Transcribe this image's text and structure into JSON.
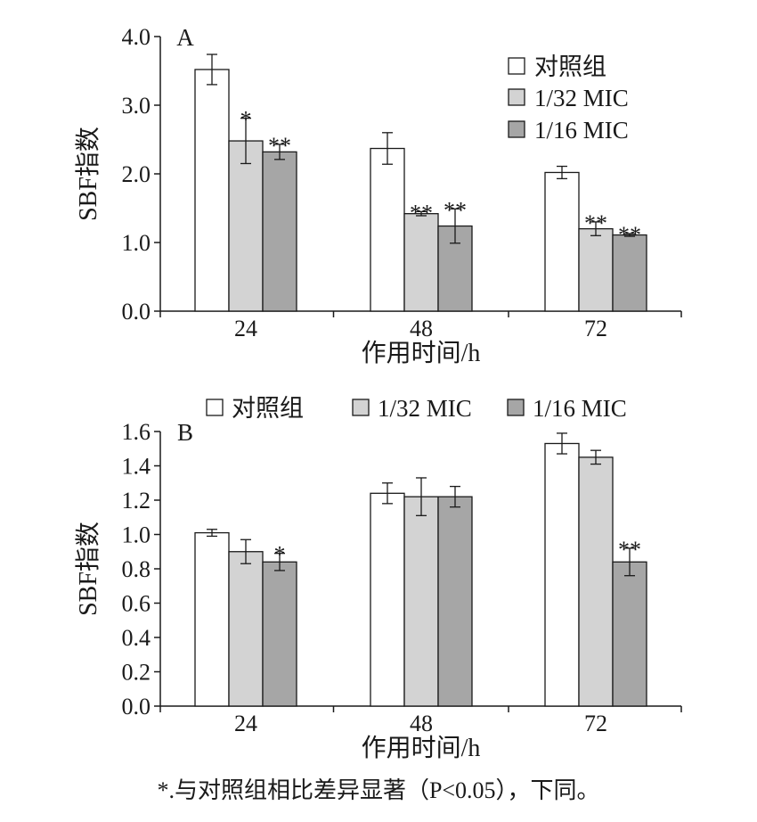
{
  "colors": {
    "control": "#ffffff",
    "mic32": "#d3d3d3",
    "mic16": "#a6a6a6",
    "stroke": "#1a1a1a"
  },
  "legend_items": [
    "对照组",
    "1/32 MIC",
    "1/16 MIC"
  ],
  "footnote": "*.与对照组相比差异显著（P<0.05），下同。",
  "chart_data": [
    {
      "type": "bar",
      "panel_label": "A",
      "categories": [
        "24",
        "48",
        "72"
      ],
      "xlabel": "作用时间/h",
      "ylabel": "SBF指数",
      "ylim": [
        0,
        4.0
      ],
      "yticks": [
        "0.0",
        "1.0",
        "2.0",
        "3.0",
        "4.0"
      ],
      "legend": "top-right",
      "series": [
        {
          "name": "对照组",
          "values": [
            3.52,
            2.37,
            2.02
          ],
          "errors": [
            0.22,
            0.23,
            0.09
          ],
          "sig": [
            "",
            "",
            ""
          ]
        },
        {
          "name": "1/32 MIC",
          "values": [
            2.48,
            1.42,
            1.2
          ],
          "errors": [
            0.33,
            0.03,
            0.1
          ],
          "sig": [
            "*",
            "**",
            "**"
          ]
        },
        {
          "name": "1/16 MIC",
          "values": [
            2.32,
            1.24,
            1.11
          ],
          "errors": [
            0.11,
            0.25,
            0.02
          ],
          "sig": [
            "**",
            "**",
            "**"
          ]
        }
      ]
    },
    {
      "type": "bar",
      "panel_label": "B",
      "categories": [
        "24",
        "48",
        "72"
      ],
      "xlabel": "作用时间/h",
      "ylabel": "SBF指数",
      "ylim": [
        0,
        1.6
      ],
      "yticks": [
        "0.0",
        "0.2",
        "0.4",
        "0.6",
        "0.8",
        "1.0",
        "1.2",
        "1.4",
        "1.6"
      ],
      "legend": "top",
      "series": [
        {
          "name": "对照组",
          "values": [
            1.01,
            1.24,
            1.53
          ],
          "errors": [
            0.02,
            0.06,
            0.06
          ],
          "sig": [
            "",
            "",
            ""
          ]
        },
        {
          "name": "1/32 MIC",
          "values": [
            0.9,
            1.22,
            1.45
          ],
          "errors": [
            0.07,
            0.11,
            0.04
          ],
          "sig": [
            "",
            "",
            ""
          ]
        },
        {
          "name": "1/16 MIC",
          "values": [
            0.84,
            1.22,
            0.84
          ],
          "errors": [
            0.05,
            0.06,
            0.08
          ],
          "sig": [
            "*",
            "",
            "**"
          ]
        }
      ]
    }
  ]
}
